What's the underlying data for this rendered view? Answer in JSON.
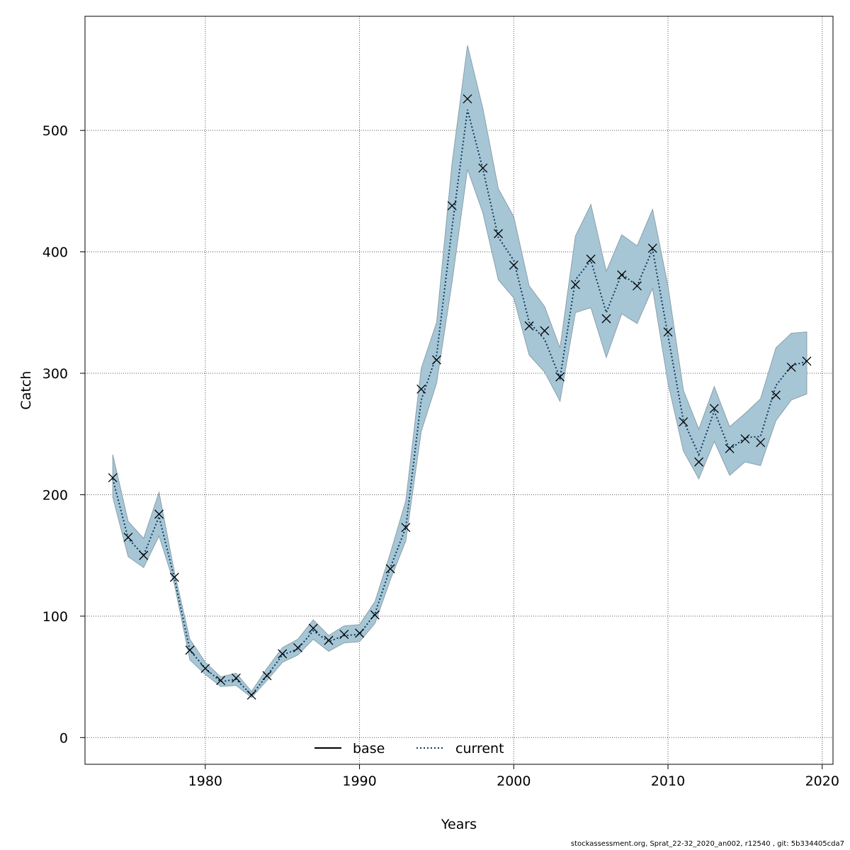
{
  "chart_data": {
    "type": "line",
    "xlabel": "Years",
    "ylabel": "Catch",
    "xlim": [
      1972.2,
      2020.7
    ],
    "ylim": [
      -22,
      594
    ],
    "x_ticks": [
      1980,
      1990,
      2000,
      2010,
      2020
    ],
    "y_ticks": [
      0,
      100,
      200,
      300,
      400,
      500
    ],
    "grid": true,
    "legend_position": "bottom-center",
    "colors": {
      "band": "#a6c6d6",
      "band_edge": "#8aa0aa",
      "current_line": "#0b3a5a",
      "base_line": "#000000"
    },
    "series": [
      {
        "name": "base",
        "style": "solid",
        "values": []
      },
      {
        "name": "current",
        "style": "dotted",
        "x": [
          1974,
          1975,
          1976,
          1977,
          1978,
          1979,
          1980,
          1981,
          1982,
          1983,
          1984,
          1985,
          1986,
          1987,
          1988,
          1989,
          1990,
          1991,
          1992,
          1993,
          1994,
          1995,
          1996,
          1997,
          1998,
          1999,
          2000,
          2001,
          2002,
          2003,
          2004,
          2005,
          2006,
          2007,
          2008,
          2009,
          2010,
          2011,
          2012,
          2013,
          2014,
          2015,
          2016,
          2017,
          2018,
          2019
        ],
        "values": [
          213,
          164,
          150,
          182,
          131,
          72,
          57,
          46,
          48,
          35,
          51,
          68,
          73,
          88,
          79,
          84,
          85,
          102,
          140,
          173,
          278,
          315,
          420,
          517,
          468,
          412,
          393,
          342,
          328,
          296,
          377,
          393,
          350,
          382,
          372,
          402,
          331,
          261,
          233,
          269,
          237,
          247,
          248,
          290,
          306,
          310
        ],
        "lower": [
          198,
          149,
          140,
          166,
          126,
          64,
          52,
          42,
          43,
          33,
          47,
          62,
          68,
          81,
          71,
          78,
          79,
          94,
          130,
          162,
          252,
          292,
          375,
          468,
          432,
          377,
          362,
          315,
          301,
          277,
          350,
          354,
          313,
          349,
          341,
          370,
          292,
          236,
          213,
          244,
          216,
          227,
          224,
          261,
          278,
          283
        ],
        "upper": [
          233,
          178,
          164,
          202,
          136,
          81,
          62,
          50,
          53,
          38,
          57,
          74,
          81,
          97,
          84,
          92,
          93,
          112,
          152,
          195,
          304,
          342,
          473,
          570,
          518,
          452,
          429,
          372,
          355,
          321,
          413,
          439,
          384,
          414,
          405,
          435,
          372,
          286,
          254,
          289,
          256,
          267,
          279,
          321,
          333,
          334
        ],
        "markers": [
          214,
          165,
          150,
          184,
          132,
          72,
          57,
          47,
          49,
          35,
          51,
          69,
          74,
          90,
          80,
          85,
          86,
          101,
          139,
          173,
          287,
          311,
          438,
          526,
          469,
          415,
          389,
          339,
          335,
          297,
          373,
          394,
          345,
          381,
          372,
          403,
          334,
          260,
          227,
          271,
          238,
          246,
          243,
          282,
          305,
          310
        ]
      }
    ]
  },
  "legend": {
    "items": [
      "base",
      "current"
    ]
  },
  "footer_text": "stockassessment.org, Sprat_22-32_2020_an002, r12540 , git: 5b334405cda7"
}
